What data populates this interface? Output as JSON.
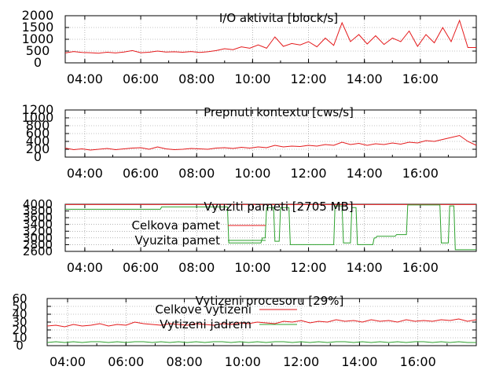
{
  "chart_data": [
    {
      "type": "line",
      "title": "I/O aktivita [block/s]",
      "ylim": [
        0,
        2000
      ],
      "yticks": [
        "0",
        "500",
        "1000",
        "1500",
        "2000"
      ],
      "xlim": [
        3.3,
        18.0
      ],
      "xticks": [
        "04:00",
        "06:00",
        "08:00",
        "10:00",
        "12:00",
        "14:00",
        "16:00"
      ],
      "grid": true,
      "series": [
        {
          "color": "#e41a1c",
          "x": [
            3.3,
            3.6,
            3.9,
            4.2,
            4.5,
            4.8,
            5.1,
            5.4,
            5.7,
            6.0,
            6.3,
            6.6,
            6.9,
            7.2,
            7.5,
            7.8,
            8.1,
            8.4,
            8.7,
            9.0,
            9.3,
            9.6,
            9.9,
            10.2,
            10.5,
            10.8,
            11.1,
            11.4,
            11.7,
            12.0,
            12.3,
            12.6,
            12.9,
            13.2,
            13.5,
            13.8,
            14.1,
            14.4,
            14.7,
            15.0,
            15.3,
            15.6,
            15.9,
            16.2,
            16.5,
            16.8,
            17.1,
            17.4,
            17.7,
            18.0
          ],
          "y": [
            420,
            480,
            440,
            430,
            410,
            450,
            420,
            460,
            520,
            430,
            450,
            500,
            460,
            470,
            450,
            480,
            440,
            470,
            520,
            600,
            560,
            680,
            620,
            760,
            620,
            1100,
            700,
            820,
            760,
            900,
            680,
            1050,
            740,
            1700,
            900,
            1200,
            800,
            1150,
            780,
            1050,
            900,
            1350,
            700,
            1200,
            850,
            1500,
            900,
            1800,
            650,
            650
          ]
        }
      ]
    },
    {
      "type": "line",
      "title": "Prepnuti kontextu [cws/s]",
      "ylim": [
        0,
        1200
      ],
      "yticks": [
        "0",
        "200",
        "400",
        "600",
        "800",
        "1000",
        "1200"
      ],
      "xlim": [
        3.3,
        18.0
      ],
      "xticks": [
        "04:00",
        "06:00",
        "08:00",
        "10:00",
        "12:00",
        "14:00",
        "16:00"
      ],
      "grid": true,
      "series": [
        {
          "color": "#e41a1c",
          "x": [
            3.3,
            3.6,
            3.9,
            4.2,
            4.5,
            4.8,
            5.1,
            5.4,
            5.7,
            6.0,
            6.3,
            6.6,
            6.9,
            7.2,
            7.5,
            7.8,
            8.1,
            8.4,
            8.7,
            9.0,
            9.3,
            9.6,
            9.9,
            10.2,
            10.5,
            10.8,
            11.1,
            11.4,
            11.7,
            12.0,
            12.3,
            12.6,
            12.9,
            13.2,
            13.5,
            13.8,
            14.1,
            14.4,
            14.7,
            15.0,
            15.3,
            15.6,
            15.9,
            16.2,
            16.5,
            16.8,
            17.1,
            17.4,
            17.7,
            18.0
          ],
          "y": [
            230,
            190,
            210,
            180,
            200,
            220,
            190,
            210,
            230,
            240,
            200,
            260,
            210,
            190,
            200,
            220,
            210,
            200,
            230,
            240,
            220,
            250,
            230,
            260,
            240,
            300,
            260,
            280,
            270,
            300,
            280,
            320,
            300,
            380,
            320,
            350,
            300,
            340,
            320,
            360,
            330,
            380,
            360,
            420,
            400,
            450,
            500,
            550,
            400,
            300
          ]
        }
      ]
    },
    {
      "type": "line",
      "title": "Vyuziti pameti [2705 MB]",
      "ylim": [
        2600,
        4000
      ],
      "yticks": [
        "2600",
        "2800",
        "3000",
        "3200",
        "3400",
        "3600",
        "3800",
        "4000"
      ],
      "xlim": [
        3.3,
        18.0
      ],
      "xticks": [
        "04:00",
        "06:00",
        "08:00",
        "10:00",
        "12:00",
        "14:00",
        "16:00"
      ],
      "grid": true,
      "legend": "top-left",
      "series": [
        {
          "name": "Celkova pamet",
          "color": "#e41a1c",
          "x": [
            3.3,
            18.0
          ],
          "y": [
            3990,
            3990
          ]
        },
        {
          "name": "Vyuzita pamet",
          "color": "#2ca02c",
          "x": [
            3.3,
            6.7,
            6.75,
            9.1,
            9.15,
            10.3,
            10.35,
            10.45,
            10.5,
            10.75,
            10.8,
            10.95,
            11.0,
            11.3,
            11.35,
            12.9,
            12.95,
            13.2,
            13.25,
            13.5,
            13.55,
            13.7,
            13.75,
            14.3,
            14.35,
            14.4,
            14.45,
            15.1,
            15.15,
            15.5,
            15.55,
            16.7,
            16.75,
            17.0,
            17.05,
            17.2,
            17.25,
            18.0
          ],
          "y": [
            3850,
            3850,
            3920,
            3920,
            2850,
            2850,
            3000,
            3000,
            3900,
            3900,
            2900,
            2900,
            3900,
            3900,
            2800,
            2800,
            3950,
            3950,
            2850,
            2850,
            3900,
            3900,
            2800,
            2800,
            3000,
            3000,
            3050,
            3050,
            3100,
            3100,
            3980,
            3980,
            2850,
            2850,
            3950,
            3950,
            2650,
            2650
          ]
        }
      ]
    },
    {
      "type": "line",
      "title": "Vytizeni procesoru [29%]",
      "ylim": [
        0,
        60
      ],
      "yticks": [
        "0",
        "10",
        "20",
        "30",
        "40",
        "50",
        "60"
      ],
      "xlim": [
        3.3,
        18.0
      ],
      "xticks": [
        "04:00",
        "06:00",
        "08:00",
        "10:00",
        "12:00",
        "14:00",
        "16:00"
      ],
      "grid": true,
      "legend": "top-left",
      "series": [
        {
          "name": "Celkove vytizeni",
          "color": "#e41a1c",
          "x": [
            3.3,
            3.6,
            3.9,
            4.2,
            4.5,
            4.8,
            5.1,
            5.4,
            5.7,
            6.0,
            6.3,
            6.6,
            6.9,
            7.2,
            7.5,
            7.8,
            8.1,
            8.4,
            8.7,
            9.0,
            9.3,
            9.6,
            9.9,
            10.2,
            10.5,
            10.8,
            11.1,
            11.4,
            11.7,
            12.0,
            12.3,
            12.6,
            12.9,
            13.2,
            13.5,
            13.8,
            14.1,
            14.4,
            14.7,
            15.0,
            15.3,
            15.6,
            15.9,
            16.2,
            16.5,
            16.8,
            17.1,
            17.4,
            17.7,
            18.0
          ],
          "y": [
            25,
            26,
            24,
            27,
            25,
            26,
            28,
            25,
            27,
            26,
            30,
            28,
            27,
            26,
            28,
            27,
            26,
            28,
            27,
            26,
            28,
            27,
            29,
            28,
            30,
            29,
            28,
            31,
            30,
            32,
            29,
            31,
            30,
            33,
            31,
            32,
            30,
            33,
            31,
            32,
            30,
            33,
            31,
            32,
            31,
            33,
            32,
            34,
            31,
            33
          ]
        },
        {
          "name": "Vytizeni jadrem",
          "color": "#2ca02c",
          "x": [
            3.3,
            3.6,
            3.9,
            4.2,
            4.5,
            4.8,
            5.1,
            5.4,
            5.7,
            6.0,
            6.3,
            6.6,
            6.9,
            7.2,
            7.5,
            7.8,
            8.1,
            8.4,
            8.7,
            9.0,
            9.3,
            9.6,
            9.9,
            10.2,
            10.5,
            10.8,
            11.1,
            11.4,
            11.7,
            12.0,
            12.3,
            12.6,
            12.9,
            13.2,
            13.5,
            13.8,
            14.1,
            14.4,
            14.7,
            15.0,
            15.3,
            15.6,
            15.9,
            16.2,
            16.5,
            16.8,
            17.1,
            17.4,
            17.7,
            18.0
          ],
          "y": [
            4,
            5,
            4,
            5,
            4,
            5,
            5,
            4,
            5,
            4,
            5,
            5,
            4,
            5,
            4,
            5,
            4,
            5,
            4,
            5,
            5,
            4,
            5,
            4,
            5,
            4,
            5,
            5,
            4,
            5,
            4,
            5,
            4,
            5,
            5,
            4,
            5,
            4,
            5,
            4,
            5,
            4,
            5,
            5,
            4,
            5,
            4,
            5,
            4,
            4
          ]
        }
      ]
    }
  ]
}
